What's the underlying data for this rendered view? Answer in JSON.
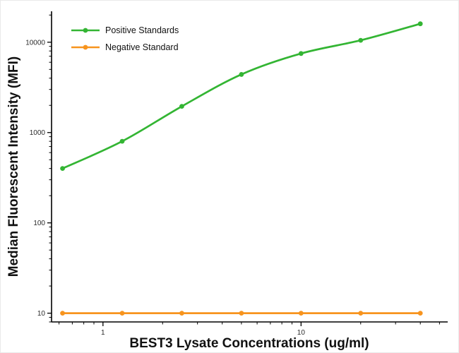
{
  "chart_data": {
    "type": "line",
    "title": "",
    "xlabel": "BEST3 Lysate Concentrations (ug/ml)",
    "ylabel": "Median Fluorescent Intensity (MFI)",
    "x_scale": "log",
    "y_scale": "log",
    "x": [
      0.625,
      1.25,
      2.5,
      5,
      10,
      20,
      40
    ],
    "series": [
      {
        "name": "Positive Standards",
        "color": "#33b533",
        "values": [
          400,
          800,
          1950,
          4400,
          7500,
          10500,
          16000
        ]
      },
      {
        "name": "Negative Standard",
        "color": "#f7941e",
        "values": [
          10,
          10,
          10,
          10,
          10,
          10,
          10
        ]
      }
    ],
    "xlim": [
      0.55,
      55
    ],
    "ylim": [
      8,
      22000
    ],
    "x_ticks": [
      1,
      10
    ],
    "y_ticks": [
      10,
      100,
      1000,
      10000
    ],
    "grid": false,
    "legend_position": "top-left",
    "axis_color": "#000000"
  }
}
